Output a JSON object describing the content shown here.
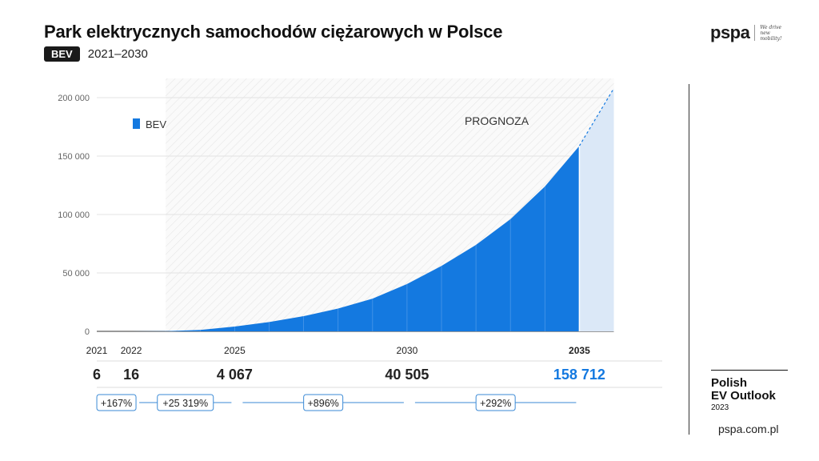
{
  "header": {
    "title": "Park elektrycznych samochodów ciężarowych w Polsce",
    "badge": "BEV",
    "subtitle": "2021–2030"
  },
  "brand": {
    "logo": "pspa",
    "tagline": "We drive new mobility!",
    "outlook_line1": "Polish",
    "outlook_line2": "EV Outlook",
    "outlook_year": "2023",
    "website": "pspa.com.pl"
  },
  "colors": {
    "bev": "#1479e0",
    "forecast_extension": "#dbe8f7",
    "totals_highlight": "#1479e0",
    "pct_border": "#3b8ad6"
  },
  "chart_data": {
    "type": "area",
    "legend": [
      "BEV"
    ],
    "legend_position": "top-left",
    "forecast_label": "PROGNOZA",
    "forecast_from": 2023,
    "x": [
      2021,
      2022,
      2023,
      2024,
      2025,
      2026,
      2027,
      2028,
      2029,
      2030,
      2031,
      2032,
      2033,
      2034,
      2035
    ],
    "series": [
      {
        "name": "BEV",
        "values": [
          6,
          16,
          200,
          1200,
          4067,
          8000,
          13000,
          19500,
          28000,
          40505,
          56000,
          74000,
          96000,
          124000,
          158712
        ]
      }
    ],
    "extension": {
      "x": [
        2035,
        2036
      ],
      "values": [
        158712,
        208000
      ]
    },
    "ylim": [
      0,
      210000
    ],
    "yticks": [
      0,
      50000,
      100000,
      150000,
      200000
    ],
    "ytick_labels": [
      "0",
      "50 000",
      "100 000",
      "150 000",
      "200 000"
    ],
    "xtick_labels": [
      {
        "x": 2021,
        "label": "2021"
      },
      {
        "x": 2022,
        "label": "2022"
      },
      {
        "x": 2025,
        "label": "2025"
      },
      {
        "x": 2030,
        "label": "2030"
      },
      {
        "x": 2035,
        "label": "2035",
        "bold": true
      }
    ],
    "totals": [
      {
        "x": 2021,
        "label": "6"
      },
      {
        "x": 2022,
        "label": "16"
      },
      {
        "x": 2025,
        "label": "4 067"
      },
      {
        "x": 2030,
        "label": "40 505"
      },
      {
        "x": 2035,
        "label": "158 712",
        "highlight": true
      }
    ],
    "growth": [
      {
        "from": 2021,
        "to": 2022,
        "label": "+167%"
      },
      {
        "from": 2022,
        "to": 2025,
        "label": "+25 319%"
      },
      {
        "from": 2025,
        "to": 2030,
        "label": "+896%"
      },
      {
        "from": 2030,
        "to": 2035,
        "label": "+292%"
      }
    ],
    "grid": true
  }
}
